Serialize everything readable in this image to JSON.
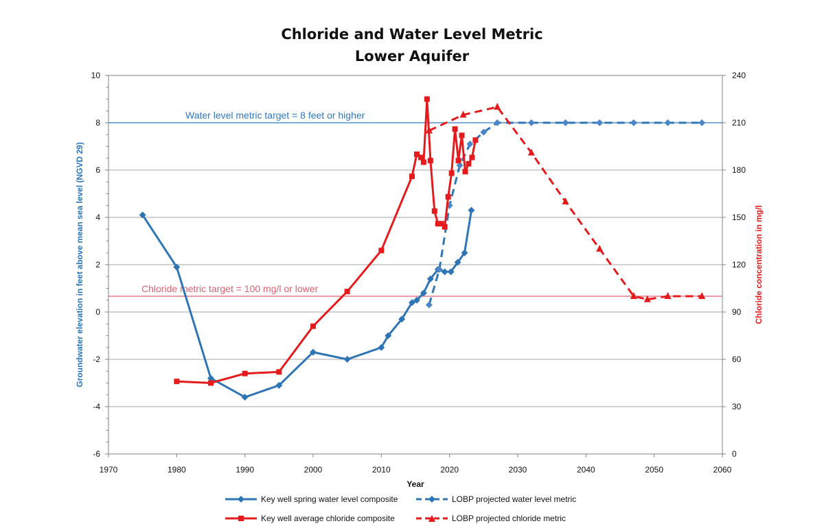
{
  "chart_data": {
    "type": "line",
    "title_line1": "Chloride and Water Level Metric",
    "title_line2": "Lower Aquifer",
    "xlabel": "Year",
    "ylabel_left": "Groundwater elevation in feet above mean sea level (NGVD 29)",
    "ylabel_right": "Chloride concentration in mg/l",
    "xlim": [
      1970,
      2060
    ],
    "xticks": [
      1970,
      1980,
      1990,
      2000,
      2010,
      2020,
      2030,
      2040,
      2050,
      2060
    ],
    "ylim_left": [
      -6,
      10
    ],
    "yticks_left": [
      -6,
      -4,
      -2,
      0,
      2,
      4,
      6,
      8,
      10
    ],
    "ylim_right": [
      0,
      240
    ],
    "yticks_right": [
      0,
      30,
      60,
      90,
      120,
      150,
      180,
      210,
      240
    ],
    "grid": true,
    "legend_position": "bottom",
    "reference_lines": [
      {
        "label": "Water level metric target = 8 feet or higher",
        "axis": "left",
        "value": 8,
        "color": "#2e78c2"
      },
      {
        "label": "Chloride metric target = 100 mg/l or lower",
        "axis": "right",
        "value": 100,
        "color": "#e06070"
      }
    ],
    "series": [
      {
        "name": "Key well spring water level composite",
        "axis": "left",
        "color": "#2e75b6",
        "dash": false,
        "marker": "diamond",
        "x": [
          1975,
          1980,
          1985,
          1990,
          1995,
          2000,
          2005,
          2010,
          2011,
          2013,
          2014.5,
          2015.2,
          2016.2,
          2017.2,
          2018.3,
          2019.3,
          2020.2,
          2021.2,
          2022.2,
          2023.2
        ],
        "y": [
          4.1,
          1.9,
          -2.8,
          -3.6,
          -3.1,
          -1.7,
          -2.0,
          -1.5,
          -1.0,
          -0.3,
          0.4,
          0.5,
          0.8,
          1.4,
          1.8,
          1.7,
          1.7,
          2.1,
          2.5,
          4.3
        ]
      },
      {
        "name": "LOBP projected water level metric",
        "axis": "left",
        "color": "#2e75b6",
        "dash": true,
        "marker": "diamond",
        "x": [
          2017,
          2018.5,
          2020,
          2021.5,
          2023,
          2025,
          2027,
          2032,
          2037,
          2042,
          2047,
          2052,
          2057
        ],
        "y": [
          0.3,
          1.8,
          4.5,
          6.2,
          7.1,
          7.6,
          8.0,
          8.0,
          8.0,
          8.0,
          8.0,
          8.0,
          8.0
        ]
      },
      {
        "name": "Key well average chloride composite",
        "axis": "right",
        "color": "#e41a1c",
        "dash": false,
        "marker": "square",
        "x": [
          1980,
          1985,
          1990,
          1995,
          2000,
          2005,
          2010,
          2014.5,
          2015.2,
          2015.8,
          2016.2,
          2016.7,
          2017.2,
          2017.8,
          2018.3,
          2018.8,
          2019.3,
          2019.8,
          2020.3,
          2020.8,
          2021.3,
          2021.8,
          2022.3,
          2022.8,
          2023.3,
          2023.8
        ],
        "y": [
          46,
          45,
          51,
          52,
          81,
          103,
          129,
          176,
          190,
          188,
          185,
          225,
          186,
          154,
          146,
          146,
          144,
          163,
          178,
          206,
          186,
          202,
          179,
          184,
          188,
          199
        ]
      },
      {
        "name": "LOBP projected chloride metric",
        "axis": "right",
        "color": "#e41a1c",
        "dash": true,
        "marker": "triangle",
        "x": [
          2017,
          2022,
          2027,
          2032,
          2037,
          2042,
          2047,
          2049,
          2052,
          2057
        ],
        "y": [
          205,
          215,
          220,
          191,
          160,
          130,
          100,
          98,
          100,
          100
        ]
      }
    ]
  }
}
